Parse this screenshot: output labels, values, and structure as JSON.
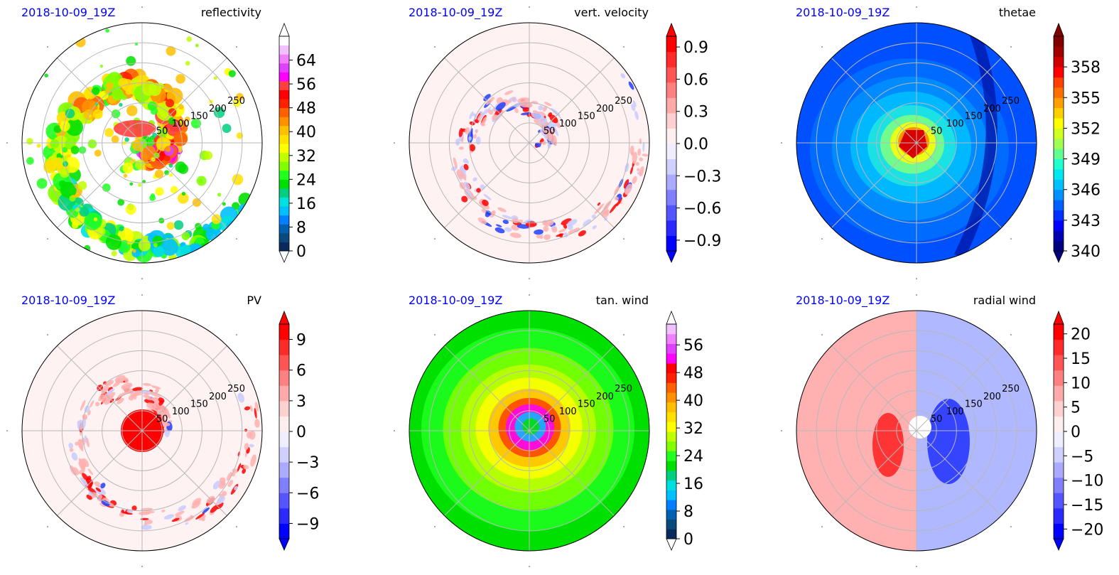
{
  "date_label": "2018-10-09_19Z",
  "ring_labels": [
    "50",
    "100",
    "150",
    "200",
    "250"
  ],
  "panels": [
    {
      "title": "reflectivity",
      "colorbar": {
        "ticks": [
          "0",
          "8",
          "16",
          "24",
          "32",
          "40",
          "48",
          "56",
          "64"
        ],
        "tick_values": [
          0,
          8,
          16,
          24,
          32,
          40,
          48,
          56,
          64
        ],
        "range": [
          0,
          72
        ],
        "colors": [
          "#0a2a5e",
          "#0a4a7a",
          "#0060b0",
          "#0080ff",
          "#00c0ff",
          "#00e0e0",
          "#00d080",
          "#00e000",
          "#20ff20",
          "#80ff00",
          "#c0ff00",
          "#ffff00",
          "#ffe000",
          "#ffc000",
          "#ff9000",
          "#ff6000",
          "#ff2000",
          "#ff0000",
          "#ff4040",
          "#ff00ff",
          "#e040ff",
          "#f080ff",
          "#f0c0ff",
          "#ffffff"
        ],
        "extend_top_color": "#ffffff",
        "extend_bottom_color": "#ffffff"
      }
    },
    {
      "title": "vert. velocity",
      "colorbar": {
        "ticks": [
          "−0.9",
          "−0.6",
          "−0.3",
          "0.0",
          "0.3",
          "0.6",
          "0.9"
        ],
        "tick_values": [
          -0.9,
          -0.6,
          -0.3,
          0.0,
          0.3,
          0.6,
          0.9
        ],
        "range": [
          -1.0,
          1.0
        ],
        "colors": [
          "#0000ff",
          "#2a2aff",
          "#5555ff",
          "#8080ff",
          "#aaaaff",
          "#d0d0ff",
          "#eeeeff",
          "#ffeeee",
          "#ffd0d0",
          "#ffaaaa",
          "#ff8080",
          "#ff5555",
          "#ff2a2a",
          "#ff0000"
        ],
        "extend_top_color": "#ff0000",
        "extend_bottom_color": "#0000ff"
      }
    },
    {
      "title": "thetae",
      "colorbar": {
        "ticks": [
          "340",
          "343",
          "346",
          "349",
          "352",
          "355",
          "358"
        ],
        "tick_values": [
          340,
          343,
          346,
          349,
          352,
          355,
          358
        ],
        "range": [
          340,
          361
        ],
        "colors": [
          "#00007f",
          "#0000b0",
          "#0000ff",
          "#0030ff",
          "#0060ff",
          "#0090ff",
          "#00c0ff",
          "#00e8f0",
          "#20ffd0",
          "#60ff90",
          "#a0ff50",
          "#d0ff20",
          "#ffff00",
          "#ffd000",
          "#ffa000",
          "#ff7000",
          "#ff4000",
          "#ff0000",
          "#d00000",
          "#a00000",
          "#800000"
        ],
        "extend_top_color": "#800000",
        "extend_bottom_color": "#00007f"
      }
    },
    {
      "title": "PV",
      "colorbar": {
        "ticks": [
          "−9",
          "−6",
          "−3",
          "0",
          "3",
          "6",
          "9"
        ],
        "tick_values": [
          -9,
          -6,
          -3,
          0,
          3,
          6,
          9
        ],
        "range": [
          -10.5,
          10.5
        ],
        "colors": [
          "#0000ff",
          "#2a2aff",
          "#5555ff",
          "#8080ff",
          "#aaaaff",
          "#d0d0ff",
          "#eeeeff",
          "#ffeeee",
          "#ffd0d0",
          "#ffaaaa",
          "#ff8080",
          "#ff5555",
          "#ff2a2a",
          "#ff0000"
        ],
        "extend_top_color": "#ff0000",
        "extend_bottom_color": "#0000ff"
      }
    },
    {
      "title": "tan. wind",
      "colorbar": {
        "ticks": [
          "0",
          "8",
          "16",
          "24",
          "32",
          "40",
          "48",
          "56"
        ],
        "tick_values": [
          0,
          8,
          16,
          24,
          32,
          40,
          48,
          56
        ],
        "range": [
          0,
          62
        ],
        "colors": [
          "#0a2a5e",
          "#0a4a7a",
          "#0060b0",
          "#0080ff",
          "#00c0ff",
          "#00e0e0",
          "#00d080",
          "#00e000",
          "#20ff20",
          "#80ff00",
          "#c0ff00",
          "#ffff00",
          "#ffe000",
          "#ffc000",
          "#ff9000",
          "#ff6000",
          "#ff2000",
          "#ff0000",
          "#ff00ff",
          "#e040ff",
          "#f080ff",
          "#f0c0ff"
        ],
        "extend_top_color": "#ffffff",
        "extend_bottom_color": "#ffffff"
      }
    },
    {
      "title": "radial wind",
      "colorbar": {
        "ticks": [
          "−20",
          "−15",
          "−10",
          "−5",
          "0",
          "5",
          "10",
          "15",
          "20"
        ],
        "tick_values": [
          -20,
          -15,
          -10,
          -5,
          0,
          5,
          10,
          15,
          20
        ],
        "range": [
          -22,
          22
        ],
        "colors": [
          "#0000ff",
          "#2a2aff",
          "#5555ff",
          "#8080ff",
          "#aaaaff",
          "#d0d0ff",
          "#eeeeff",
          "#ffeeee",
          "#ffd0d0",
          "#ffaaaa",
          "#ff8080",
          "#ff5555",
          "#ff2a2a",
          "#ff0000"
        ],
        "extend_top_color": "#ff0000",
        "extend_bottom_color": "#0000ff"
      }
    }
  ],
  "chart_data": [
    {
      "type": "heatmap",
      "projection": "polar",
      "title": "reflectivity",
      "annotation": "2018-10-09_19Z",
      "radial_ticks": [
        50,
        100,
        150,
        200,
        250
      ],
      "colorbar_ticks": [
        0,
        8,
        16,
        24,
        32,
        40,
        48,
        56,
        64
      ]
    },
    {
      "type": "heatmap",
      "projection": "polar",
      "title": "vert. velocity",
      "annotation": "2018-10-09_19Z",
      "radial_ticks": [
        50,
        100,
        150,
        200,
        250
      ],
      "colorbar_ticks": [
        -0.9,
        -0.6,
        -0.3,
        0.0,
        0.3,
        0.6,
        0.9
      ]
    },
    {
      "type": "heatmap",
      "projection": "polar",
      "title": "thetae",
      "annotation": "2018-10-09_19Z",
      "radial_ticks": [
        50,
        100,
        150,
        200,
        250
      ],
      "colorbar_ticks": [
        340,
        343,
        346,
        349,
        352,
        355,
        358
      ]
    },
    {
      "type": "heatmap",
      "projection": "polar",
      "title": "PV",
      "annotation": "2018-10-09_19Z",
      "radial_ticks": [
        50,
        100,
        150,
        200,
        250
      ],
      "colorbar_ticks": [
        -9,
        -6,
        -3,
        0,
        3,
        6,
        9
      ]
    },
    {
      "type": "heatmap",
      "projection": "polar",
      "title": "tan. wind",
      "annotation": "2018-10-09_19Z",
      "radial_ticks": [
        50,
        100,
        150,
        200,
        250
      ],
      "colorbar_ticks": [
        0,
        8,
        16,
        24,
        32,
        40,
        48,
        56
      ]
    },
    {
      "type": "heatmap",
      "projection": "polar",
      "title": "radial wind",
      "annotation": "2018-10-09_19Z",
      "radial_ticks": [
        50,
        100,
        150,
        200,
        250
      ],
      "colorbar_ticks": [
        -20,
        -15,
        -10,
        -5,
        0,
        5,
        10,
        15,
        20
      ]
    }
  ]
}
